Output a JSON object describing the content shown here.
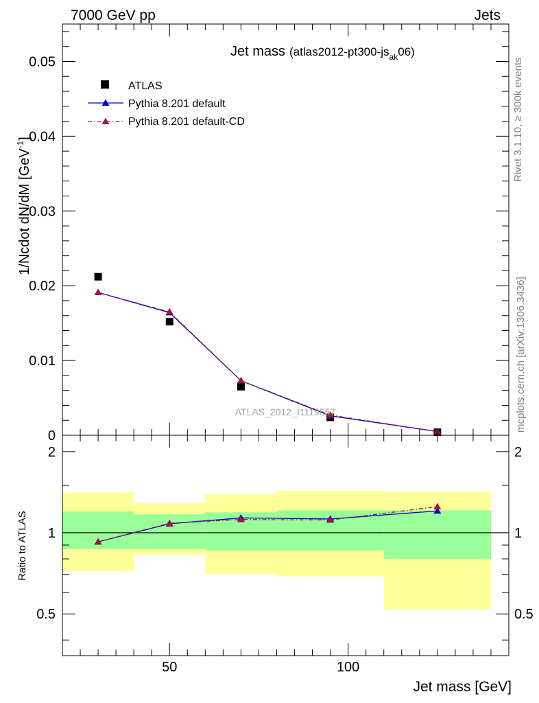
{
  "header": {
    "left": "7000 GeV pp",
    "right": "Jets"
  },
  "side_labels": {
    "rivet": "Rivet 3.1.10, ≥ 300k events",
    "mcplots": "mcplots.cern.ch [arXiv:1306.3436]"
  },
  "chart_data": [
    {
      "type": "scatter",
      "title": "Jet mass",
      "title_detail": "(atlas2012-pt300-js",
      "title_sub": "ak",
      "title_end": "06)",
      "ylabel": "1/Ncdot dN/dM [GeV",
      "ylabel_sup": "-1",
      "ylabel_end": "]",
      "xlabel": "Jet mass [GeV]",
      "watermark": "ATLAS_2012_I1119557",
      "xlim": [
        20,
        145
      ],
      "ylim": [
        0,
        0.055
      ],
      "yticks": [
        0,
        0.01,
        0.02,
        0.03,
        0.04,
        0.05
      ],
      "ytick_labels": [
        "0",
        "0.01",
        "0.02",
        "0.03",
        "0.04",
        "0.05"
      ],
      "xticks": [
        50,
        100
      ],
      "xtick_labels": [
        "50",
        "100"
      ],
      "legend_position": "top-left",
      "series": [
        {
          "name": "ATLAS",
          "style": "data",
          "color": "#000000",
          "x": [
            30,
            50,
            70,
            95,
            125
          ],
          "y": [
            0.0212,
            0.0152,
            0.0065,
            0.0024,
            0.0004
          ]
        },
        {
          "name": "Pythia 8.201 default",
          "style": "solid",
          "color": "#0000cc",
          "x": [
            30,
            50,
            70,
            95,
            125
          ],
          "y": [
            0.0191,
            0.0164,
            0.0073,
            0.0026,
            0.0005
          ]
        },
        {
          "name": "Pythia 8.201 default-CD",
          "style": "dashdot",
          "color": "#a0163f",
          "x": [
            30,
            50,
            70,
            95,
            125
          ],
          "y": [
            0.0191,
            0.0165,
            0.0073,
            0.0027,
            0.0005
          ]
        }
      ]
    },
    {
      "type": "line",
      "ylabel": "Ratio to ATLAS",
      "ylim": [
        0.35,
        2.3
      ],
      "yticks": [
        0.5,
        1,
        2
      ],
      "ytick_labels": [
        "0.5",
        "1",
        "2"
      ],
      "bins": [
        {
          "lo": 20,
          "hi": 40,
          "green": [
            0.87,
            1.2
          ],
          "yellow": [
            0.72,
            1.41
          ]
        },
        {
          "lo": 40,
          "hi": 60,
          "green": [
            0.87,
            1.17
          ],
          "yellow": [
            0.83,
            1.29
          ]
        },
        {
          "lo": 60,
          "hi": 80,
          "green": [
            0.86,
            1.19
          ],
          "yellow": [
            0.7,
            1.39
          ]
        },
        {
          "lo": 80,
          "hi": 110,
          "green": [
            0.86,
            1.21
          ],
          "yellow": [
            0.69,
            1.43
          ]
        },
        {
          "lo": 110,
          "hi": 140,
          "green": [
            0.8,
            1.21
          ],
          "yellow": [
            0.52,
            1.42
          ]
        }
      ],
      "series": [
        {
          "name": "Pythia 8.201 default",
          "color": "#0000cc",
          "style": "solid",
          "x": [
            30,
            50,
            70,
            95,
            125
          ],
          "y": [
            0.925,
            1.08,
            1.135,
            1.125,
            1.205
          ]
        },
        {
          "name": "Pythia 8.201 default-CD",
          "color": "#a0163f",
          "style": "dashdot",
          "x": [
            30,
            50,
            70,
            95,
            125
          ],
          "y": [
            0.925,
            1.085,
            1.12,
            1.115,
            1.25
          ]
        }
      ]
    }
  ]
}
